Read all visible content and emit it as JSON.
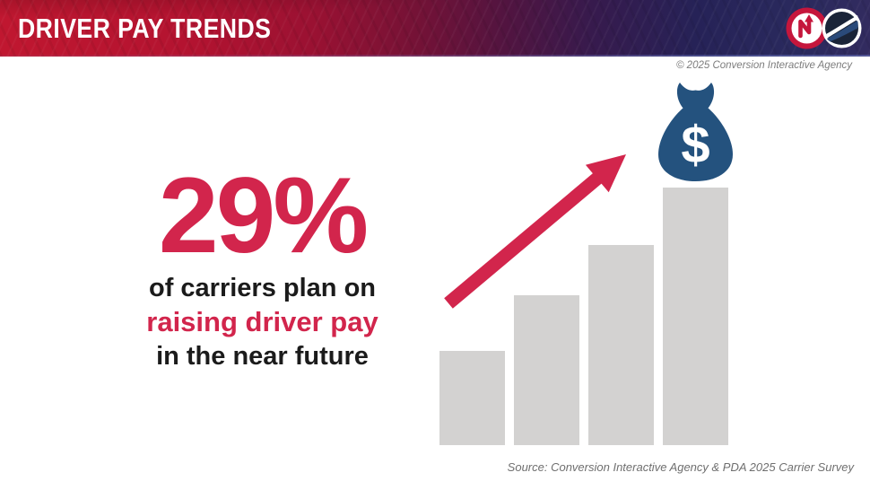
{
  "header": {
    "title": "DRIVER PAY TRENDS",
    "gradient_left_color": "#c01730",
    "gradient_right_color": "#2a2a5e",
    "logos": [
      {
        "name": "conversion-interactive-agency-logo",
        "ring_color": "#c5163c"
      },
      {
        "name": "pda-logo",
        "ring_color": "#ffffff"
      }
    ]
  },
  "copyright": "© 2025 Conversion Interactive Agency",
  "headline": {
    "stat": "29%",
    "line1": "of carriers plan on",
    "line2": "raising driver pay",
    "line3": "in the near future",
    "accent_color": "#d2254c",
    "text_color": "#1b1b1b"
  },
  "chart_data": {
    "type": "bar",
    "decorative": true,
    "categories": [
      "bar-1",
      "bar-2",
      "bar-3",
      "bar-4"
    ],
    "values": [
      105,
      167,
      223,
      287
    ],
    "unit": "relative-height-px",
    "title": "",
    "xlabel": "",
    "ylabel": "",
    "grid": false,
    "legend": false,
    "bar_color": "#d3d2d1",
    "arrow_color": "#d2254c",
    "money_bag_color": "#24527e",
    "money_bag_symbol": "$"
  },
  "source": "Source: Conversion Interactive Agency & PDA 2025 Carrier Survey"
}
